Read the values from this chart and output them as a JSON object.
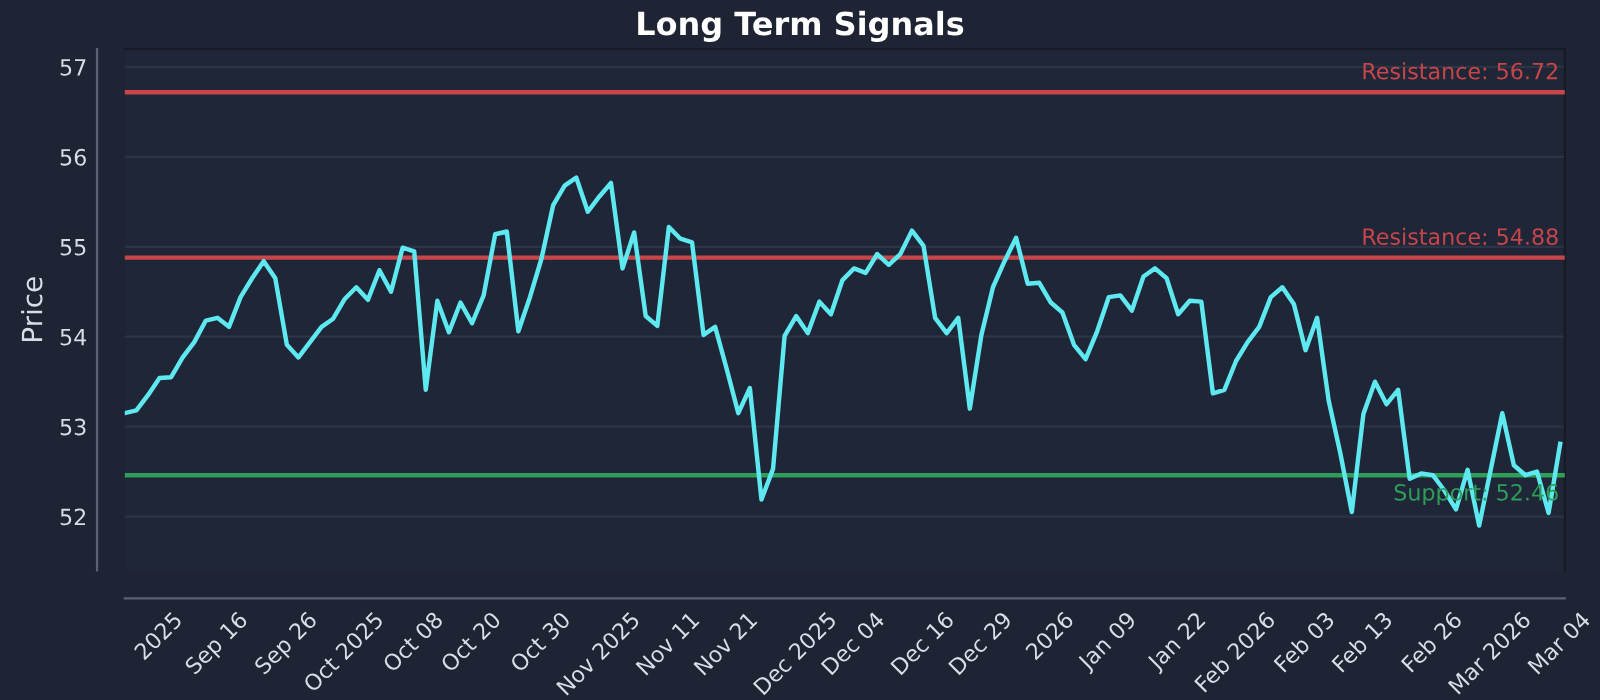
{
  "chart_data": {
    "type": "line",
    "title": "Long Term Signals",
    "ylabel": "Price",
    "categories": [
      null,
      null,
      null,
      "2025",
      null,
      null,
      null,
      null,
      "Sep 16",
      null,
      null,
      null,
      null,
      null,
      "Sep 26",
      null,
      null,
      null,
      null,
      "Oct 2025",
      null,
      null,
      null,
      null,
      null,
      "Oct 08",
      null,
      null,
      null,
      null,
      "Oct 20",
      null,
      null,
      null,
      null,
      null,
      "Oct 30",
      null,
      null,
      null,
      null,
      "Nov 2025",
      null,
      null,
      null,
      null,
      null,
      "Nov 11",
      null,
      null,
      null,
      null,
      "Nov 21",
      null,
      null,
      null,
      null,
      null,
      "Dec 2025",
      null,
      null,
      null,
      null,
      "Dec 04",
      null,
      null,
      null,
      null,
      null,
      "Dec 16",
      null,
      null,
      null,
      null,
      "Dec 29",
      null,
      null,
      null,
      null,
      null,
      "2026",
      null,
      null,
      null,
      null,
      "Jan 09",
      null,
      null,
      null,
      null,
      null,
      "Jan 22",
      null,
      null,
      null,
      null,
      "Feb 2026",
      null,
      null,
      null,
      null,
      null,
      "Feb 03",
      null,
      null,
      null,
      null,
      "Feb 13",
      null,
      null,
      null,
      null,
      null,
      "Feb 26",
      null,
      null,
      null,
      null,
      "Mar 2026",
      null,
      null,
      null,
      null,
      null,
      "Mar 04"
    ],
    "series": [
      {
        "color": "#5ee8f0",
        "values": [
          53.15,
          53.18,
          53.35,
          53.54,
          53.55,
          53.77,
          53.94,
          54.18,
          54.21,
          54.11,
          54.44,
          54.65,
          54.84,
          54.65,
          53.91,
          53.77,
          53.94,
          54.11,
          54.2,
          54.42,
          54.55,
          54.41,
          54.74,
          54.5,
          54.99,
          54.95,
          53.41,
          54.4,
          54.05,
          54.38,
          54.15,
          54.46,
          55.14,
          55.17,
          54.06,
          54.44,
          54.87,
          55.46,
          55.68,
          55.77,
          55.39,
          55.56,
          55.71,
          54.76,
          55.16,
          54.23,
          54.12,
          55.22,
          55.09,
          55.05,
          54.02,
          54.11,
          53.64,
          53.15,
          53.43,
          52.19,
          52.53,
          54.01,
          54.23,
          54.04,
          54.39,
          54.25,
          54.63,
          54.76,
          54.71,
          54.92,
          54.8,
          54.92,
          55.18,
          55.01,
          54.21,
          54.04,
          54.21,
          53.2,
          54.02,
          54.55,
          54.84,
          55.1,
          54.59,
          54.6,
          54.38,
          54.27,
          53.91,
          53.75,
          54.06,
          54.44,
          54.46,
          54.29,
          54.67,
          54.76,
          54.65,
          54.25,
          54.4,
          54.39,
          53.37,
          53.41,
          53.73,
          53.94,
          54.11,
          54.44,
          54.55,
          54.36,
          53.85,
          54.21,
          53.29,
          52.71,
          52.05,
          53.14,
          53.5,
          53.25,
          53.41,
          52.42,
          52.48,
          52.46,
          52.29,
          52.08,
          52.52,
          51.9,
          52.52,
          53.15,
          52.57,
          52.46,
          52.5,
          52.04,
          52.81
        ]
      }
    ],
    "ylim": [
      51.4,
      57.2
    ],
    "yticks": [
      52,
      53,
      54,
      55,
      56,
      57
    ],
    "ref_lines": [
      {
        "axis": "y",
        "value": 56.72,
        "label": "Resistance: 56.72",
        "color": "#c8454a"
      },
      {
        "axis": "y",
        "value": 54.88,
        "label": "Resistance: 54.88",
        "color": "#c8454a"
      },
      {
        "axis": "y",
        "value": 52.46,
        "label": "Support: 52.46",
        "color": "#2e9e5a"
      }
    ],
    "grid": "y",
    "line_style": "solid"
  }
}
